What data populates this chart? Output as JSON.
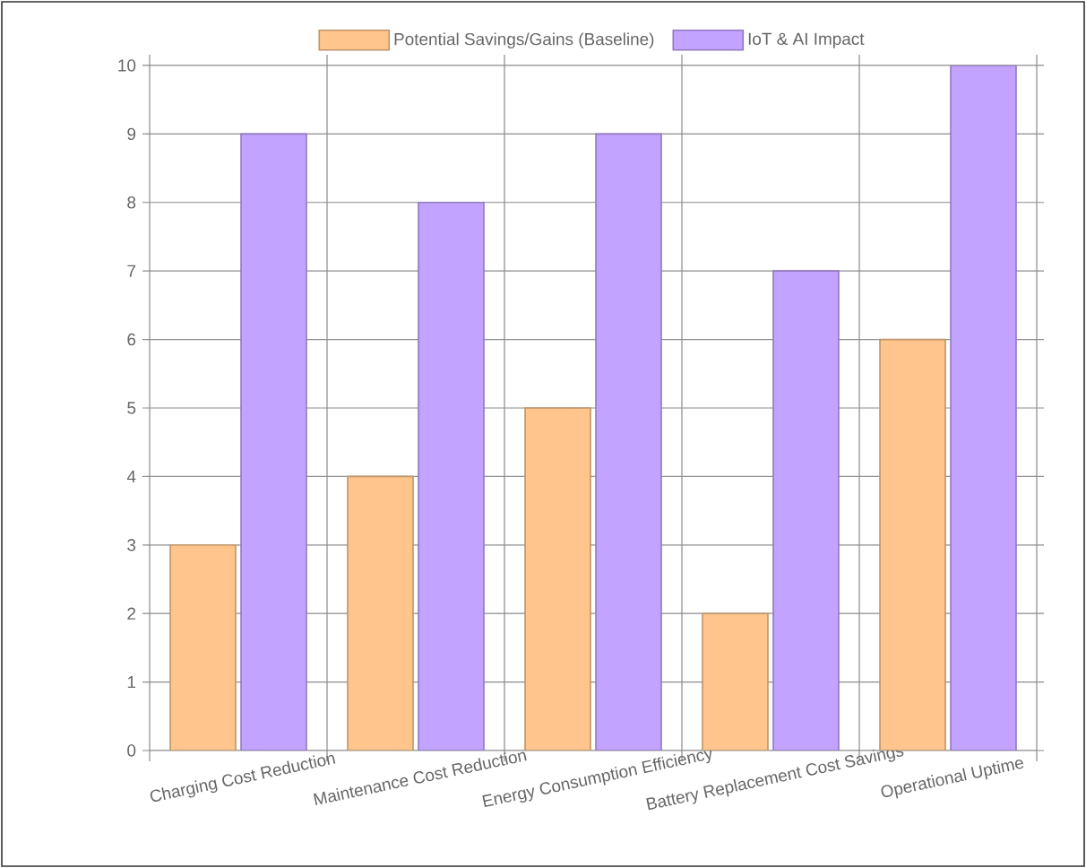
{
  "chart_data": {
    "type": "bar",
    "categories": [
      "Charging Cost Reduction",
      "Maintenance Cost Reduction",
      "Energy Consumption Efficiency",
      "Battery Replacement Cost Savings",
      "Operational Uptime"
    ],
    "series": [
      {
        "name": "Potential Savings/Gains (Baseline)",
        "color": "#ffc58c",
        "values": [
          3,
          4,
          5,
          2,
          6
        ]
      },
      {
        "name": "IoT & AI Impact",
        "color": "#c2a3ff",
        "values": [
          9,
          8,
          9,
          7,
          10
        ]
      }
    ],
    "ylim": [
      0,
      10
    ],
    "yticks": [
      0,
      1,
      2,
      3,
      4,
      5,
      6,
      7,
      8,
      9,
      10
    ],
    "grid": true,
    "legend": "top"
  }
}
